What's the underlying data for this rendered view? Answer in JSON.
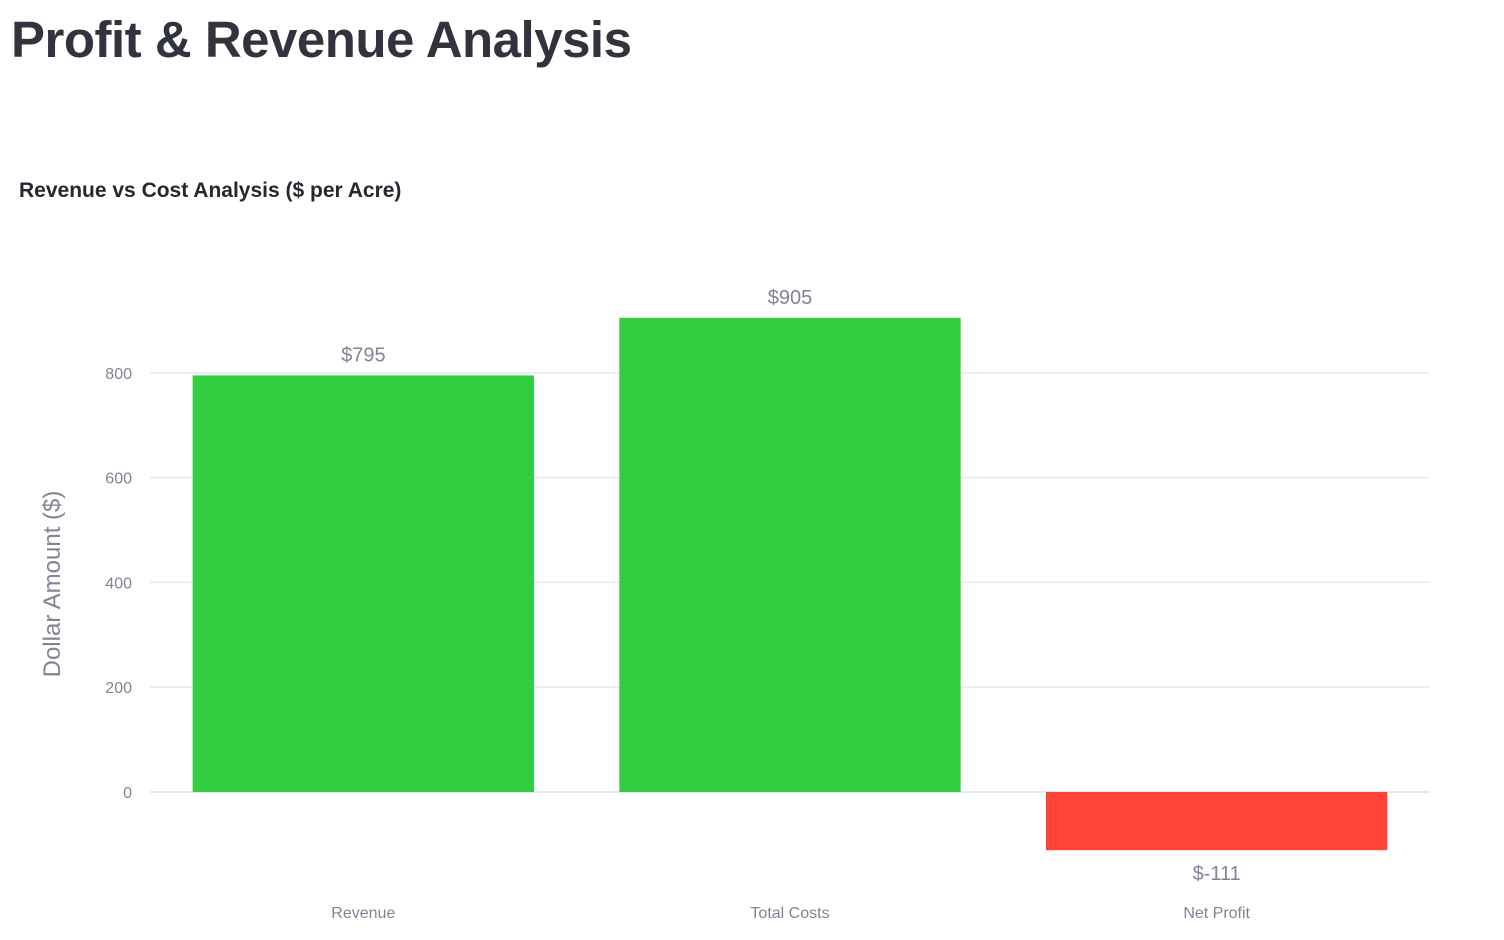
{
  "page": {
    "title": "Profit & Revenue Analysis"
  },
  "chart_data": {
    "type": "bar",
    "title": "Revenue vs Cost Analysis ($ per Acre)",
    "xlabel": "",
    "ylabel": "Dollar Amount ($)",
    "categories": [
      "Revenue",
      "Total Costs",
      "Net Profit"
    ],
    "values": [
      795,
      905,
      -111
    ],
    "data_labels": [
      "$795",
      "$905",
      "$-111"
    ],
    "colors": [
      "#32cd40",
      "#32cd40",
      "#ff4337"
    ],
    "ylim": [
      -135,
      980
    ],
    "yticks": [
      0,
      200,
      400,
      600,
      800
    ],
    "grid": true,
    "legend": "none"
  }
}
